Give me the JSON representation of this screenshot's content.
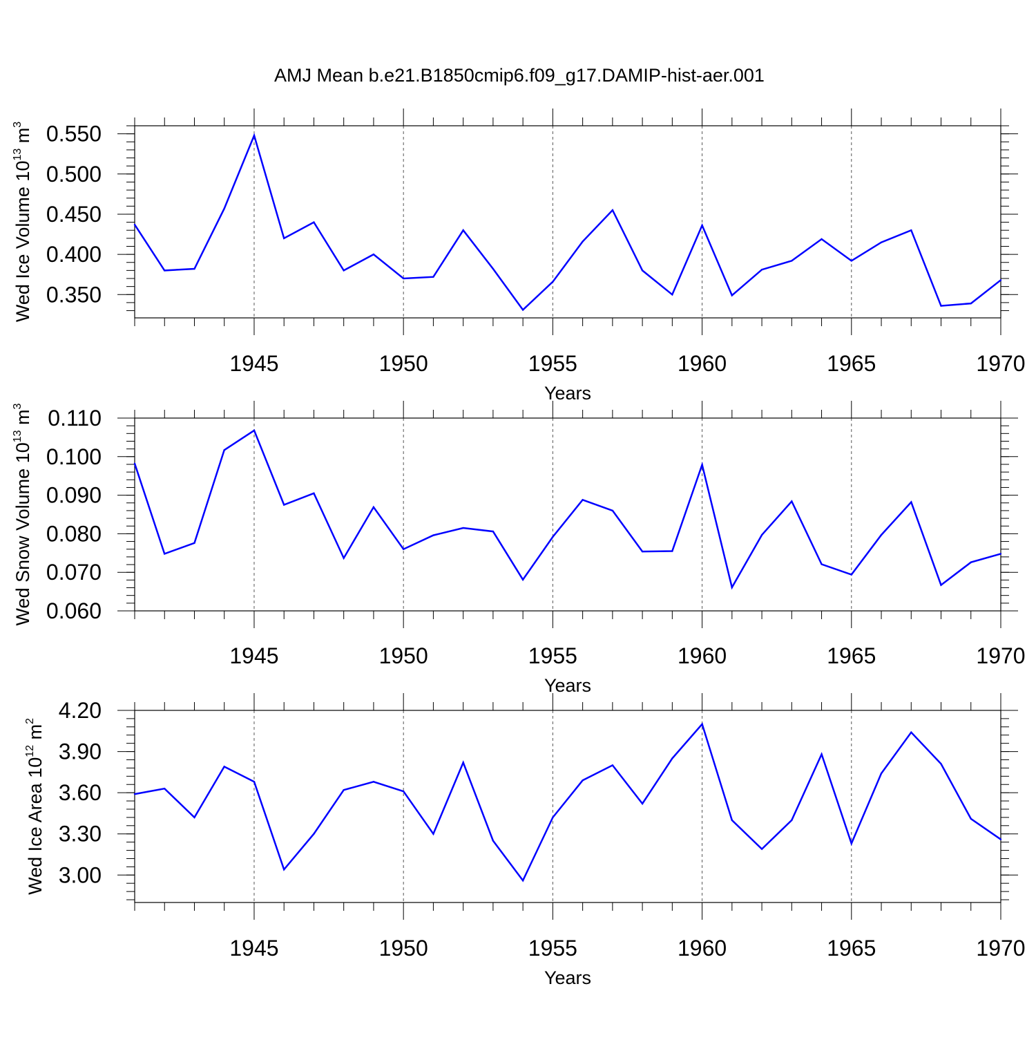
{
  "title": "AMJ Mean b.e21.B1850cmip6.f09_g17.DAMIP-hist-aer.001",
  "colors": {
    "line": "#0000ff",
    "axis": "#000000",
    "grid": "#555555"
  },
  "chart_data": [
    {
      "type": "line",
      "name": "ice-volume",
      "ylabel": {
        "main": "Wed Ice Volume 10",
        "exp": "13",
        "unit": " m",
        "unit_exp": "3"
      },
      "xlabel": "Years",
      "xlim": [
        1941,
        1970
      ],
      "ylim": [
        0.321,
        0.56
      ],
      "yticks": [
        0.35,
        0.4,
        0.45,
        0.5,
        0.55
      ],
      "ytick_labels": [
        "0.350",
        "0.400",
        "0.450",
        "0.500",
        "0.550"
      ],
      "yminor": 0.01,
      "xticks": [
        1945,
        1950,
        1955,
        1960,
        1965,
        1970
      ],
      "xtick_labels": [
        "1945",
        "1950",
        "1955",
        "1960",
        "1965",
        "1970"
      ],
      "years": [
        1941,
        1942,
        1943,
        1944,
        1945,
        1946,
        1947,
        1948,
        1949,
        1950,
        1951,
        1952,
        1953,
        1954,
        1955,
        1956,
        1957,
        1958,
        1959,
        1960,
        1961,
        1962,
        1963,
        1964,
        1965,
        1966,
        1967,
        1968,
        1969,
        1970
      ],
      "values": [
        0.437,
        0.38,
        0.382,
        0.457,
        0.548,
        0.42,
        0.44,
        0.38,
        0.4,
        0.37,
        0.372,
        0.43,
        0.382,
        0.331,
        0.366,
        0.416,
        0.455,
        0.38,
        0.35,
        0.436,
        0.349,
        0.381,
        0.392,
        0.419,
        0.392,
        0.415,
        0.43,
        0.336,
        0.339,
        0.368
      ]
    },
    {
      "type": "line",
      "name": "snow-volume",
      "ylabel": {
        "main": "Wed Snow Volume 10",
        "exp": "13",
        "unit": " m",
        "unit_exp": "3"
      },
      "xlabel": "Years",
      "xlim": [
        1941,
        1970
      ],
      "ylim": [
        0.06,
        0.11
      ],
      "yticks": [
        0.06,
        0.07,
        0.08,
        0.09,
        0.1,
        0.11
      ],
      "ytick_labels": [
        "0.060",
        "0.070",
        "0.080",
        "0.090",
        "0.100",
        "0.110"
      ],
      "yminor": 0.002,
      "xticks": [
        1945,
        1950,
        1955,
        1960,
        1965,
        1970
      ],
      "xtick_labels": [
        "1945",
        "1950",
        "1955",
        "1960",
        "1965",
        "1970"
      ],
      "years": [
        1941,
        1942,
        1943,
        1944,
        1945,
        1946,
        1947,
        1948,
        1949,
        1950,
        1951,
        1952,
        1953,
        1954,
        1955,
        1956,
        1957,
        1958,
        1959,
        1960,
        1961,
        1962,
        1963,
        1964,
        1965,
        1966,
        1967,
        1968,
        1969,
        1970
      ],
      "values": [
        0.0982,
        0.0748,
        0.0776,
        0.1017,
        0.1068,
        0.0875,
        0.0905,
        0.0737,
        0.0869,
        0.076,
        0.0796,
        0.0815,
        0.0806,
        0.0681,
        0.0792,
        0.0888,
        0.086,
        0.0754,
        0.0755,
        0.0979,
        0.0661,
        0.0797,
        0.0884,
        0.0721,
        0.0694,
        0.0797,
        0.0882,
        0.0667,
        0.0726,
        0.0748
      ]
    },
    {
      "type": "line",
      "name": "ice-area",
      "ylabel": {
        "main": "Wed Ice Area 10",
        "exp": "12",
        "unit": " m",
        "unit_exp": "2"
      },
      "xlabel": "Years",
      "xlim": [
        1941,
        1970
      ],
      "ylim": [
        2.8,
        4.2
      ],
      "yticks": [
        3.0,
        3.3,
        3.6,
        3.9,
        4.2
      ],
      "ytick_labels": [
        "3.00",
        "3.30",
        "3.60",
        "3.90",
        "4.20"
      ],
      "yminor": 0.06,
      "xticks": [
        1945,
        1950,
        1955,
        1960,
        1965,
        1970
      ],
      "xtick_labels": [
        "1945",
        "1950",
        "1955",
        "1960",
        "1965",
        "1970"
      ],
      "years": [
        1941,
        1942,
        1943,
        1944,
        1945,
        1946,
        1947,
        1948,
        1949,
        1950,
        1951,
        1952,
        1953,
        1954,
        1955,
        1956,
        1957,
        1958,
        1959,
        1960,
        1961,
        1962,
        1963,
        1964,
        1965,
        1966,
        1967,
        1968,
        1969,
        1970
      ],
      "values": [
        3.59,
        3.63,
        3.42,
        3.79,
        3.68,
        3.04,
        3.3,
        3.62,
        3.68,
        3.61,
        3.3,
        3.82,
        3.25,
        2.96,
        3.42,
        3.69,
        3.8,
        3.52,
        3.85,
        4.1,
        3.4,
        3.19,
        3.4,
        3.88,
        3.23,
        3.74,
        4.04,
        3.81,
        3.41,
        3.26
      ]
    }
  ]
}
